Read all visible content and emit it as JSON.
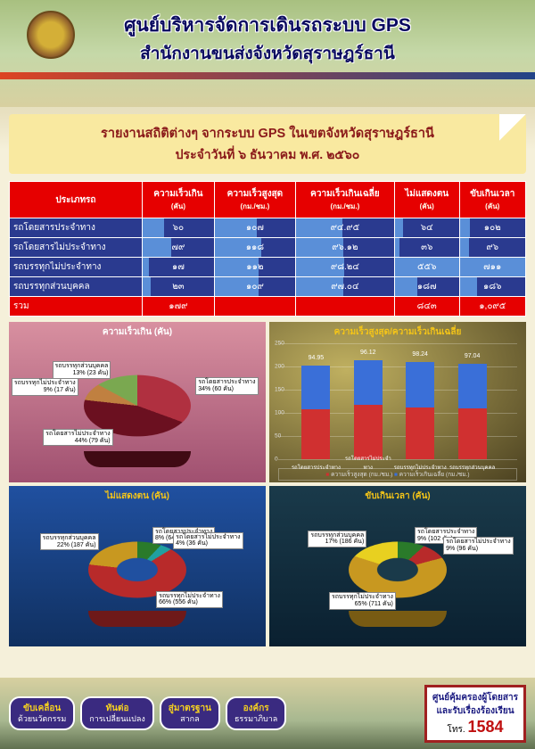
{
  "header": {
    "title": "ศูนย์บริหารจัดการเดินรถระบบ GPS",
    "subtitle": "สำนักงานขนส่งจังหวัดสุราษฎร์ธานี"
  },
  "report_box": {
    "line1": "รายงานสถิติต่างๆ จากระบบ GPS ในเขตจังหวัดสุราษฎร์ธานี",
    "line2": "ประจำวันที่ ๖ ธันวาคม พ.ศ. ๒๕๖๐"
  },
  "table": {
    "columns": [
      {
        "label": "ประเภทรถ",
        "sub": ""
      },
      {
        "label": "ความเร็วเกิน",
        "sub": "(คัน)"
      },
      {
        "label": "ความเร็วสูงสุด",
        "sub": "(กม./ชม.)"
      },
      {
        "label": "ความเร็วเกินเฉลี่ย",
        "sub": "(กม./ชม.)"
      },
      {
        "label": "ไม่แสดงตน",
        "sub": "(คัน)"
      },
      {
        "label": "ขับเกินเวลา",
        "sub": "(คัน)"
      }
    ],
    "rows": [
      {
        "label": "รถโดยสารประจำทาง",
        "cells": [
          "๖๐",
          "๑๐๗",
          "๙๔.๙๕",
          "๖๔",
          "๑๐๒"
        ],
        "bars": [
          30,
          52,
          47,
          12,
          15
        ]
      },
      {
        "label": "รถโดยสารไม่ประจำทาง",
        "cells": [
          "๗๙",
          "๑๑๘",
          "๙๖.๑๒",
          "๓๖",
          "๙๖"
        ],
        "bars": [
          40,
          58,
          48,
          7,
          14
        ]
      },
      {
        "label": "รถบรรทุกไม่ประจำทาง",
        "cells": [
          "๑๗",
          "๑๑๒",
          "๙๘.๒๔",
          "๕๕๖",
          "๗๑๑"
        ],
        "bars": [
          9,
          55,
          49,
          100,
          100
        ]
      },
      {
        "label": "รถบรรทุกส่วนบุคคล",
        "cells": [
          "๒๓",
          "๑๐๙",
          "๙๗.๐๔",
          "๑๘๗",
          "๑๘๖"
        ],
        "bars": [
          12,
          54,
          48,
          35,
          27
        ]
      }
    ],
    "total": {
      "label": "รวม",
      "cells": [
        "๑๗๙",
        "",
        "",
        "๘๔๓",
        "๑,๐๙๕"
      ]
    }
  },
  "charts": {
    "pie1": {
      "title": "ความเร็วเกิน (คัน)",
      "slices": [
        {
          "label": "รถโดยสารประจำทาง",
          "pct": 34,
          "count": "60 คัน",
          "color": "#b03040"
        },
        {
          "label": "รถโดยสารไม่ประจำทาง",
          "pct": 44,
          "count": "79 คัน",
          "color": "#6b1020"
        },
        {
          "label": "รถบรรทุกไม่ประจำทาง",
          "pct": 9,
          "count": "17 คัน",
          "color": "#c08040"
        },
        {
          "label": "รถบรรทุกส่วนบุคคล",
          "pct": 13,
          "count": "23 คัน",
          "color": "#7aa850"
        }
      ]
    },
    "bar3d": {
      "title": "ความเร็วสูงสุด/ความเร็วเกินเฉลี่ย",
      "ylim": [
        0,
        250
      ],
      "ytick": 50,
      "categories": [
        "รถโดยสารประจำทาง",
        "รถโดยสารไม่ประจำทาง",
        "รถบรรทุกไม่ประจำทาง",
        "รถบรรทุกส่วนบุคคล"
      ],
      "series": [
        {
          "name": "ความเร็วสูงสุด (กม./ชม.)",
          "values": [
            107,
            118,
            112,
            109
          ],
          "color": "#d03030"
        },
        {
          "name": "ความเร็วเกินเฉลี่ย (กม./ชม.)",
          "values": [
            94.95,
            96.12,
            98.24,
            97.04
          ],
          "color": "#3a6fd8"
        }
      ],
      "top_labels": [
        "94.95",
        "96.12",
        "98.24",
        "97.04"
      ]
    },
    "pie2": {
      "title": "ไม่แสดงตน (คัน)",
      "hole_color": "#2050a0",
      "slices": [
        {
          "label": "รถโดยสารประจำทาง",
          "pct": 8,
          "count": "64 คัน",
          "color": "#2a7a2a"
        },
        {
          "label": "รถโดยสารไม่ประจำทาง",
          "pct": 4,
          "count": "36 คัน",
          "color": "#20a0a0"
        },
        {
          "label": "รถบรรทุกไม่ประจำทาง",
          "pct": 66,
          "count": "556 คัน",
          "color": "#b82a2a"
        },
        {
          "label": "รถบรรทุกส่วนบุคคล",
          "pct": 22,
          "count": "187 คัน",
          "color": "#c89820"
        }
      ]
    },
    "pie3": {
      "title": "ขับเกินเวลา (คัน)",
      "hole_color": "#1a3a4a",
      "slices": [
        {
          "label": "รถโดยสารประจำทาง",
          "pct": 9,
          "count": "102 คัน",
          "color": "#2a7a2a"
        },
        {
          "label": "รถโดยสารไม่ประจำทาง",
          "pct": 9,
          "count": "96 คัน",
          "color": "#b82a2a"
        },
        {
          "label": "รถบรรทุกไม่ประจำทาง",
          "pct": 65,
          "count": "711 คัน",
          "color": "#c89820"
        },
        {
          "label": "รถบรรทุกส่วนบุคคล",
          "pct": 17,
          "count": "186 คัน",
          "color": "#e8d020"
        }
      ]
    }
  },
  "footer": {
    "buttons": [
      {
        "top": "ขับเคลื่อน",
        "bottom": "ด้วยนวัตกรรม"
      },
      {
        "top": "ทันต่อ",
        "bottom": "การเปลี่ยนแปลง"
      },
      {
        "top": "สู่มาตรฐาน",
        "bottom": "สากล"
      },
      {
        "top": "องค์กร",
        "bottom": "ธรรมาภิบาล"
      }
    ],
    "right": {
      "line1": "ศูนย์คุ้มครองผู้โดยสาร",
      "line2": "และรับเรื่องร้องเรียน",
      "hot_prefix": "โทร.",
      "hot": "1584"
    }
  }
}
